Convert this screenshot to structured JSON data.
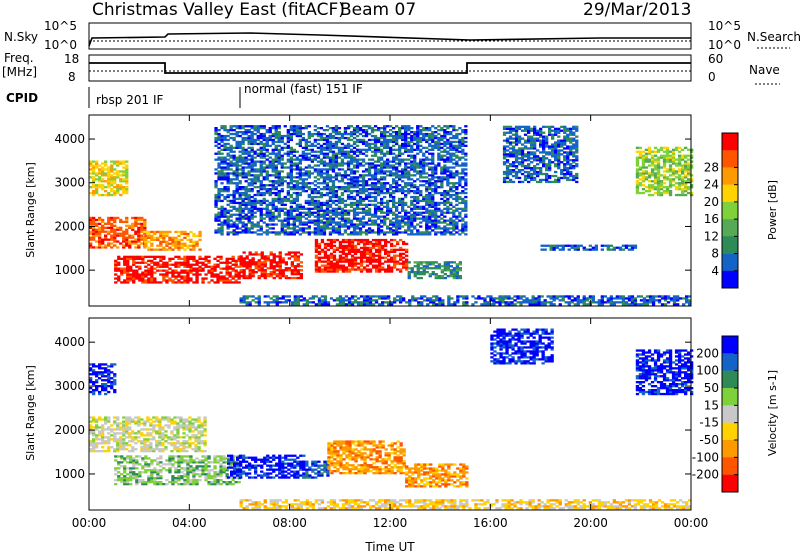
{
  "header": {
    "title": "Christmas Valley East (fitACF)",
    "beam": "Beam 07",
    "date": "29/Mar/2013"
  },
  "strips": {
    "nsky": {
      "label": "N.Sky",
      "ticks": [
        "10^5",
        "10^0"
      ],
      "right_ticks": [
        "10^5",
        "10^0"
      ],
      "right_label": "N.Search"
    },
    "freq": {
      "label_line1": "Freq.",
      "label_line2": "[MHz]",
      "ticks": [
        "18",
        "8"
      ],
      "right_ticks": [
        "60",
        "0"
      ],
      "right_label": "Nave"
    },
    "cpid": {
      "label": "CPID",
      "segments": [
        "rbsp 201 IF",
        "normal (fast) 151 IF"
      ]
    }
  },
  "chart_data": [
    {
      "type": "heatmap",
      "panel": "power",
      "ylabel": "Slant Range [km]",
      "xlabel": "Time UT",
      "xticks": [
        "00:00",
        "04:00",
        "08:00",
        "12:00",
        "16:00",
        "20:00",
        "00:00"
      ],
      "yticks": [
        1000,
        2000,
        3000,
        4000
      ],
      "xlim_hours": [
        0,
        24
      ],
      "ylim_km": [
        180,
        4550
      ],
      "colorbar": {
        "label": "Power [dB]",
        "ticks": [
          4,
          8,
          12,
          16,
          20,
          24,
          28
        ],
        "colors": [
          "#0000ff",
          "#1464c8",
          "#2e8b57",
          "#55aa55",
          "#7fd13b",
          "#ffd200",
          "#ff9900",
          "#ff5500",
          "#ff0000"
        ]
      },
      "regions": [
        {
          "t": [
            0.0,
            2.2
          ],
          "r": [
            1500,
            2200
          ],
          "level": 7
        },
        {
          "t": [
            2.2,
            4.4
          ],
          "r": [
            1450,
            1900
          ],
          "level": 6
        },
        {
          "t": [
            1.0,
            6.0
          ],
          "r": [
            700,
            1300
          ],
          "level": 8
        },
        {
          "t": [
            6.0,
            8.5
          ],
          "r": [
            800,
            1400
          ],
          "level": 8
        },
        {
          "t": [
            9.0,
            12.7
          ],
          "r": [
            950,
            1700
          ],
          "level": 8
        },
        {
          "t": [
            12.7,
            14.8
          ],
          "r": [
            800,
            1200
          ],
          "level": 2
        },
        {
          "t": [
            0.0,
            1.5
          ],
          "r": [
            2700,
            3500
          ],
          "level": 5
        },
        {
          "t": [
            5.0,
            15.0
          ],
          "r": [
            1800,
            4300
          ],
          "level": 1
        },
        {
          "t": [
            16.5,
            19.5
          ],
          "r": [
            3000,
            4300
          ],
          "level": 1
        },
        {
          "t": [
            18.0,
            21.8
          ],
          "r": [
            1450,
            1550
          ],
          "level": 1
        },
        {
          "t": [
            21.8,
            24.0
          ],
          "r": [
            2700,
            3800
          ],
          "level": 4
        },
        {
          "t": [
            6.0,
            24.0
          ],
          "r": [
            200,
            400
          ],
          "level": 1
        }
      ]
    },
    {
      "type": "heatmap",
      "panel": "velocity",
      "ylabel": "Slant Range [km]",
      "xlabel": "Time UT",
      "xticks": [
        "00:00",
        "04:00",
        "08:00",
        "12:00",
        "16:00",
        "20:00",
        "00:00"
      ],
      "yticks": [
        1000,
        2000,
        3000,
        4000
      ],
      "xlim_hours": [
        0,
        24
      ],
      "ylim_km": [
        180,
        4550
      ],
      "colorbar": {
        "label": "Velocity [m s-1]",
        "ticks": [
          200,
          100,
          50,
          15,
          -15,
          -50,
          -100,
          -200
        ],
        "colors": [
          "#0000ff",
          "#1464c8",
          "#2e8b57",
          "#7fd13b",
          "#c8c8c8",
          "#ffd200",
          "#ff9900",
          "#ff5500",
          "#ff0000"
        ]
      },
      "regions": [
        {
          "t": [
            0.0,
            4.6
          ],
          "r": [
            1500,
            2300
          ],
          "level": 4
        },
        {
          "t": [
            1.0,
            6.0
          ],
          "r": [
            750,
            1400
          ],
          "level": 3
        },
        {
          "t": [
            5.5,
            8.5
          ],
          "r": [
            900,
            1400
          ],
          "level": 0
        },
        {
          "t": [
            8.5,
            9.5
          ],
          "r": [
            900,
            1300
          ],
          "level": 1
        },
        {
          "t": [
            9.5,
            12.6
          ],
          "r": [
            1000,
            1750
          ],
          "level": 6
        },
        {
          "t": [
            12.6,
            15.0
          ],
          "r": [
            700,
            1200
          ],
          "level": 6
        },
        {
          "t": [
            0.0,
            1.0
          ],
          "r": [
            2800,
            3500
          ],
          "level": 0
        },
        {
          "t": [
            16.0,
            18.5
          ],
          "r": [
            3500,
            4300
          ],
          "level": 0
        },
        {
          "t": [
            21.8,
            24.0
          ],
          "r": [
            2800,
            3800
          ],
          "level": 0
        },
        {
          "t": [
            6.0,
            24.0
          ],
          "r": [
            200,
            400
          ],
          "level": 5
        }
      ]
    }
  ]
}
